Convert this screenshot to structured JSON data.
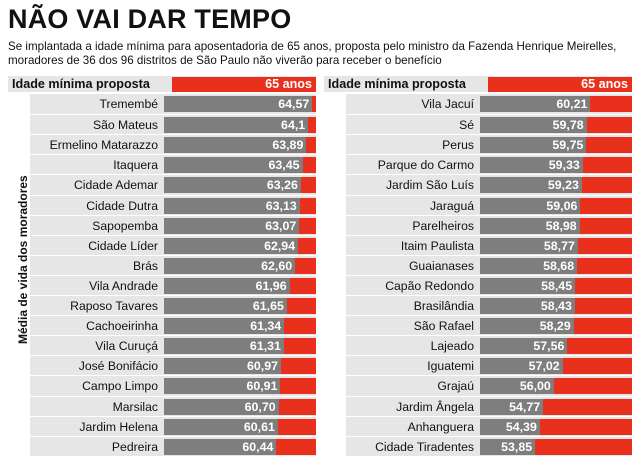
{
  "title": "NÃO VAI DAR TEMPO",
  "subtitle": "Se implantada a idade mínima para aposentadoria de 65 anos, proposta pelo ministro da Fazenda Henrique Meirelles, moradores de 36 dos 96 distritos de São Paulo não viverão para receber o benefício",
  "colors": {
    "bar": "#7e7e7e",
    "threshold": "#e8301c",
    "panel": "#e6e6e6"
  },
  "chart_data": [
    {
      "type": "bar",
      "orientation": "horizontal",
      "header_label": "Idade mínima proposta",
      "threshold": 65,
      "threshold_label": "65 anos",
      "ylabel": "Média de vida dos moradores",
      "xlim": [
        0,
        65
      ],
      "categories": [
        "Tremembé",
        "São Mateus",
        "Ermelino Matarazzo",
        "Itaquera",
        "Cidade Ademar",
        "Cidade Dutra",
        "Sapopemba",
        "Cidade Líder",
        "Brás",
        "Vila Andrade",
        "Raposo Tavares",
        "Cachoeirinha",
        "Vila Curuçá",
        "José Bonifácio",
        "Campo Limpo",
        "Marsilac",
        "Jardim Helena",
        "Pedreira"
      ],
      "values": [
        64.57,
        64.1,
        63.89,
        63.45,
        63.26,
        63.13,
        63.07,
        62.94,
        62.6,
        61.96,
        61.65,
        61.34,
        61.31,
        60.97,
        60.91,
        60.7,
        60.61,
        60.44
      ],
      "value_labels": [
        "64,57",
        "64,1",
        "63,89",
        "63,45",
        "63,26",
        "63,13",
        "63,07",
        "62,94",
        "62,60",
        "61,96",
        "61,65",
        "61,34",
        "61,31",
        "60,97",
        "60,91",
        "60,70",
        "60,61",
        "60,44"
      ]
    },
    {
      "type": "bar",
      "orientation": "horizontal",
      "header_label": "Idade mínima proposta",
      "threshold": 65,
      "threshold_label": "65 anos",
      "ylabel": "",
      "xlim": [
        0,
        65
      ],
      "categories": [
        "Vila Jacuí",
        "Sé",
        "Perus",
        "Parque do Carmo",
        "Jardim São Luís",
        "Jaraguá",
        "Parelheiros",
        "Itaim Paulista",
        "Guaianases",
        "Capão Redondo",
        "Brasilândia",
        "São Rafael",
        "Lajeado",
        "Iguatemi",
        "Grajaú",
        "Jardim Ângela",
        "Anhanguera",
        "Cidade Tiradentes"
      ],
      "values": [
        60.21,
        59.78,
        59.75,
        59.33,
        59.23,
        59.06,
        58.98,
        58.77,
        58.68,
        58.45,
        58.43,
        58.29,
        57.56,
        57.02,
        56.0,
        54.77,
        54.39,
        53.85
      ],
      "value_labels": [
        "60,21",
        "59,78",
        "59,75",
        "59,33",
        "59,23",
        "59,06",
        "58,98",
        "58,77",
        "58,68",
        "58,45",
        "58,43",
        "58,29",
        "57,56",
        "57,02",
        "56,00",
        "54,77",
        "54,39",
        "53,85"
      ]
    }
  ]
}
